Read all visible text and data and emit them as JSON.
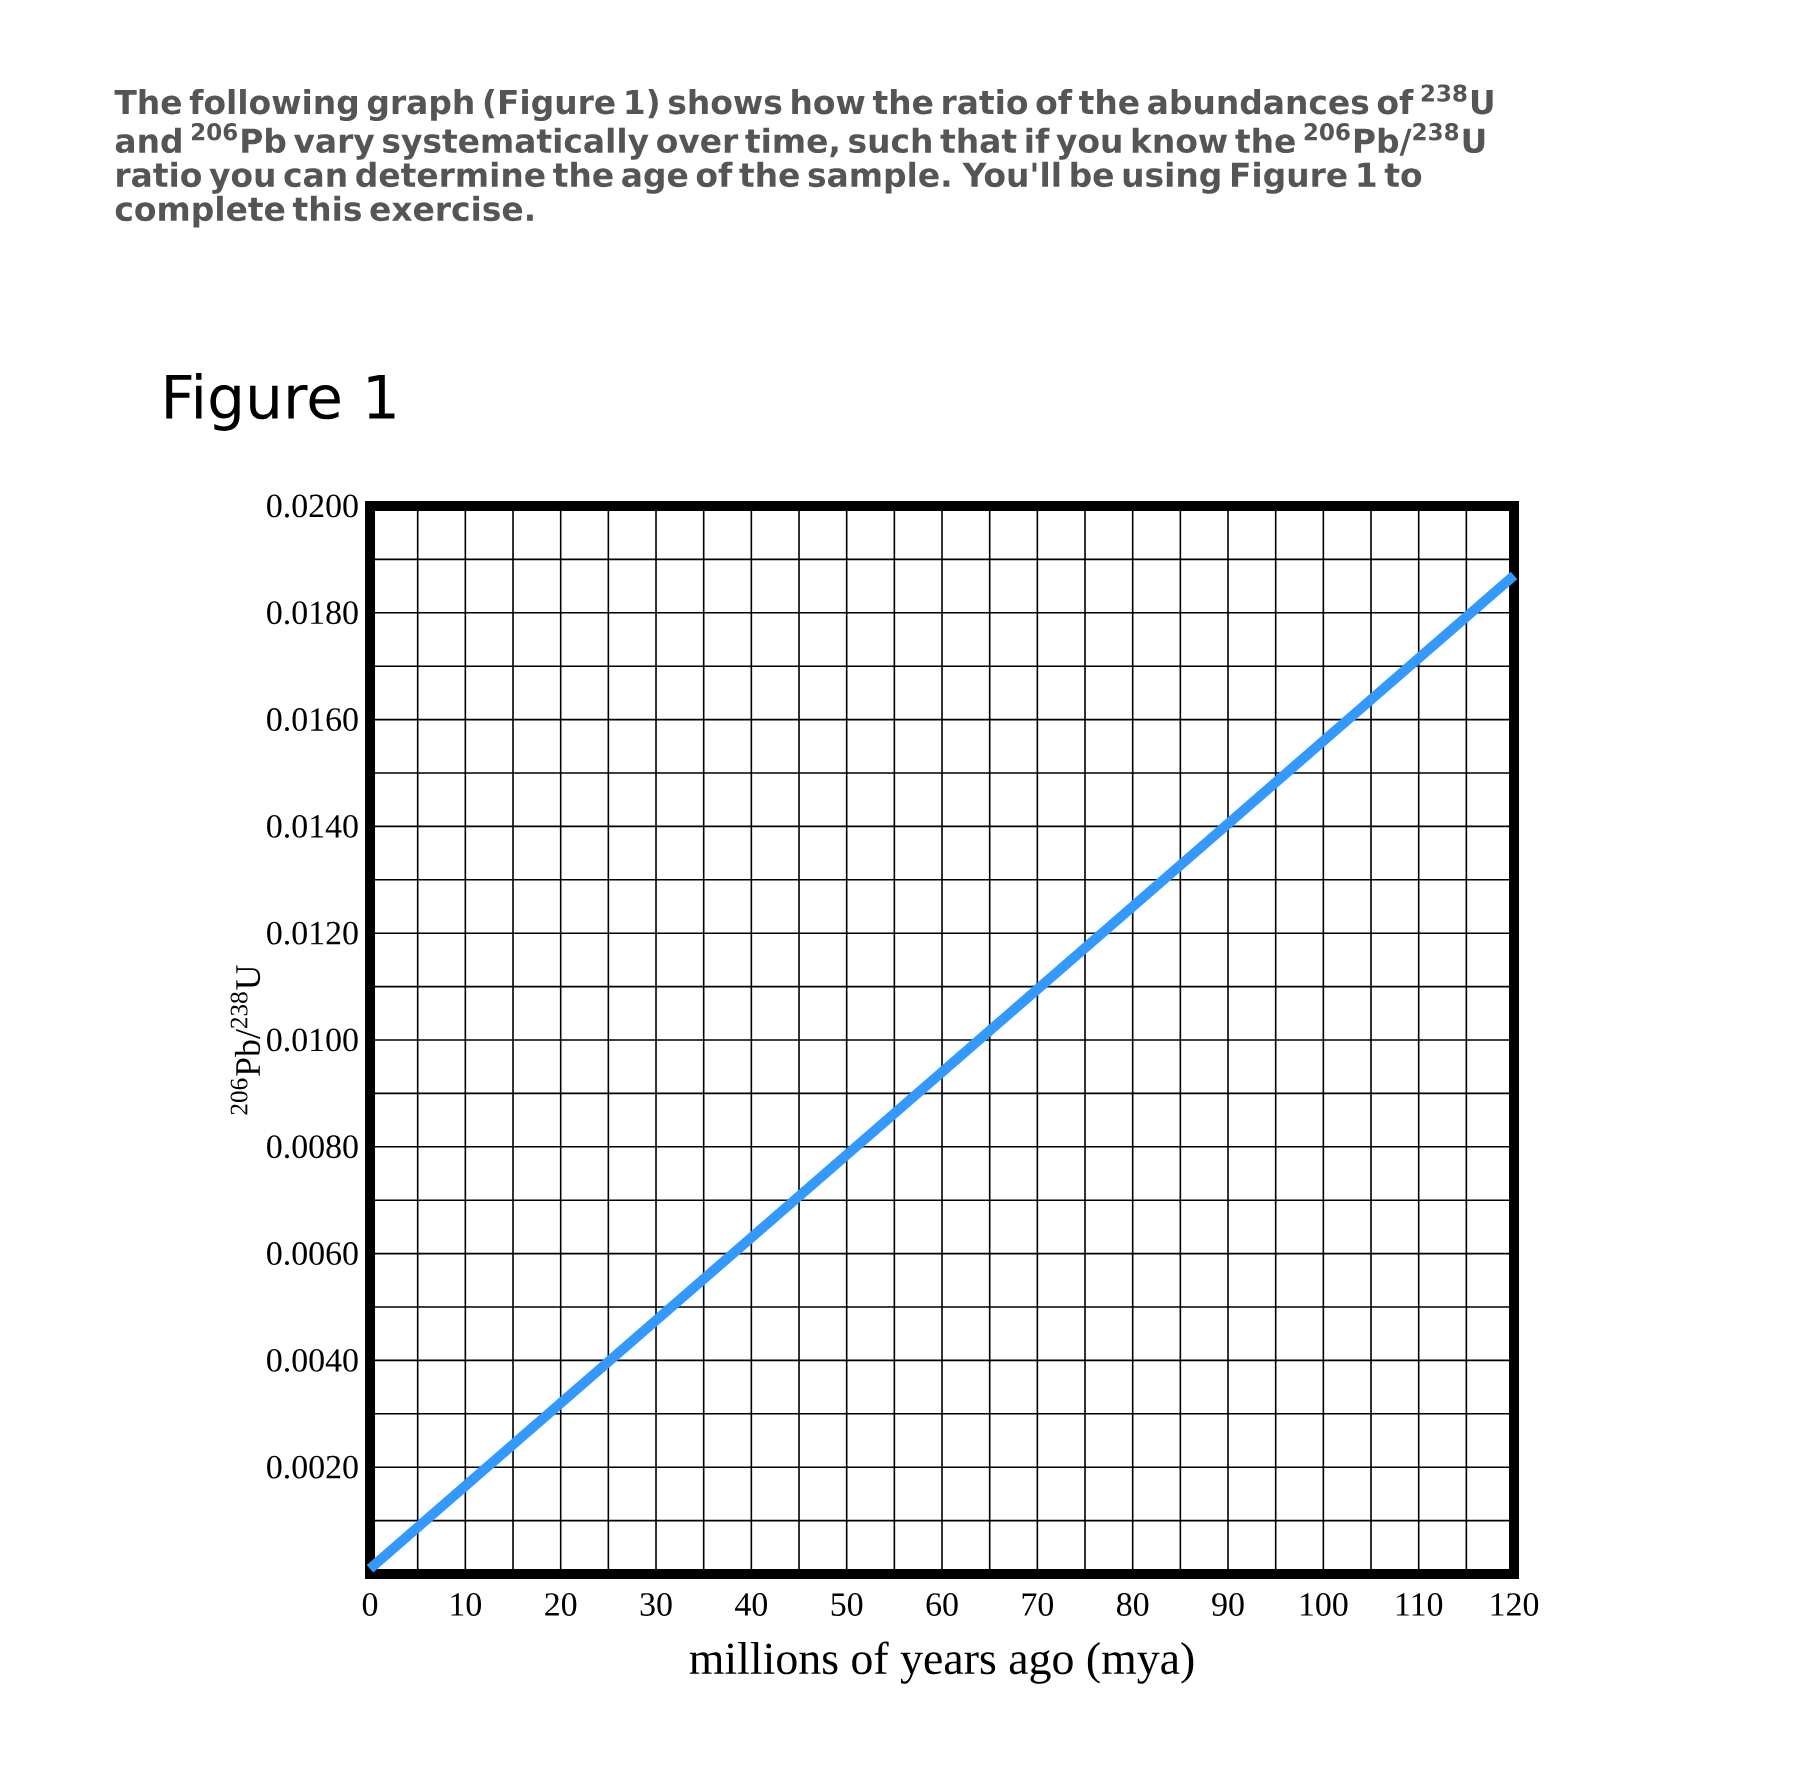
{
  "chart_data": {
    "type": "line",
    "title": "Figure 1",
    "annotations": [
      "The following graph (Figure 1) shows how the ratio of the abundances of $^{238}$U and $^{206}$Pb vary systematically over time, such that if you know the $^{206}$Pb/$^{238}$U ratio you can determine the age of the sample. You'll be using Figure 1 to complete this exercise."
    ],
    "xlabel": "millions of years ago (mya)",
    "ylabel": "$^{206}$Pb/$^{238}$U",
    "x": [
      0,
      120
    ],
    "series": [
      {
        "color": "#3399ff",
        "values": [
          0.0001,
          0.0187
        ]
      }
    ],
    "xlim": [
      0,
      120
    ],
    "ylim": [
      0,
      0.02
    ],
    "xticks": [
      0,
      {
        "value": 5,
        "label": null
      },
      10,
      {
        "value": 15,
        "label": null
      },
      20,
      {
        "value": 25,
        "label": null
      },
      30,
      {
        "value": 35,
        "label": null
      },
      40,
      {
        "value": 45,
        "label": null
      },
      50,
      {
        "value": 55,
        "label": null
      },
      60,
      {
        "value": 65,
        "label": null
      },
      70,
      {
        "value": 75,
        "label": null
      },
      80,
      {
        "value": 85,
        "label": null
      },
      90,
      {
        "value": 95,
        "label": null
      },
      100,
      {
        "value": 105,
        "label": null
      },
      110,
      {
        "value": 115,
        "label": null
      },
      120
    ],
    "yticks": [
      {
        "value": 0,
        "label": null
      },
      {
        "value": 0.001,
        "label": null
      },
      {
        "value": 0.002,
        "label": "0.0020"
      },
      {
        "value": 0.003,
        "label": null
      },
      {
        "value": 0.004,
        "label": "0.0040"
      },
      {
        "value": 0.005,
        "label": null
      },
      {
        "value": 0.006,
        "label": "0.0060"
      },
      {
        "value": 0.007,
        "label": null
      },
      {
        "value": 0.008,
        "label": "0.0080"
      },
      {
        "value": 0.009,
        "label": null
      },
      {
        "value": 0.01,
        "label": "0.0100"
      },
      {
        "value": 0.011,
        "label": null
      },
      {
        "value": 0.012,
        "label": "0.0120"
      },
      {
        "value": 0.013,
        "label": null
      },
      {
        "value": 0.014,
        "label": "0.0140"
      },
      {
        "value": 0.015,
        "label": null
      },
      {
        "value": 0.016,
        "label": "0.0160"
      },
      {
        "value": 0.017,
        "label": null
      },
      {
        "value": 0.018,
        "label": "0.0180"
      },
      {
        "value": 0.019,
        "label": null
      },
      {
        "value": 0.02,
        "label": "0.0200"
      }
    ],
    "grid": true
  }
}
